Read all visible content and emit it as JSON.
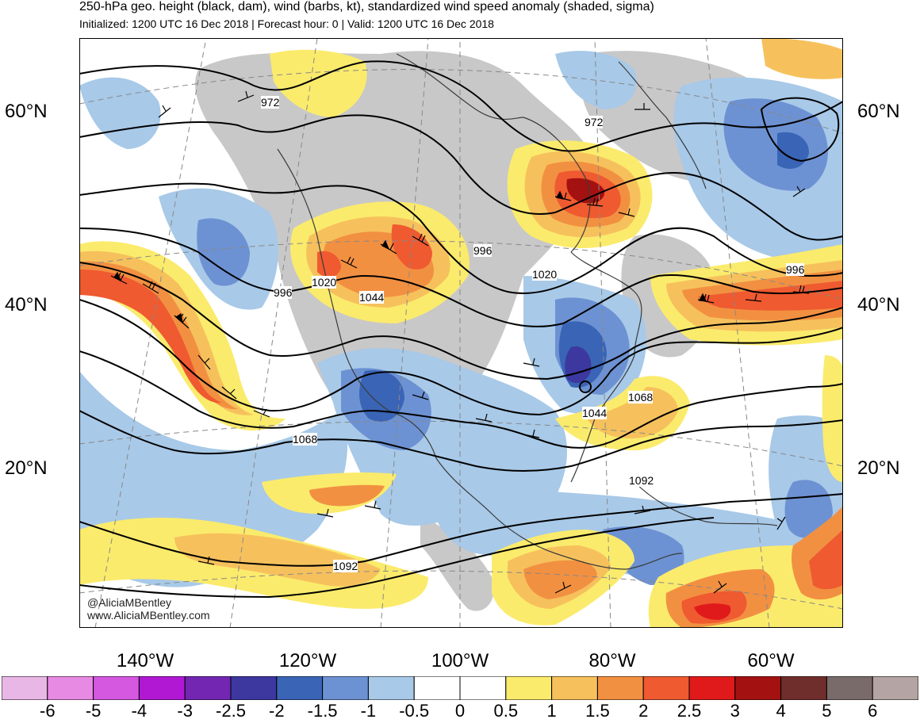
{
  "header": {
    "title": "250-hPa geo. height (black, dam), wind (barbs, kt), standardized wind speed anomaly (shaded, sigma)",
    "subtitle": "Initialized: 1200 UTC 16 Dec 2018 | Forecast hour: 0 | Valid: 1200 UTC 16 Dec 2018"
  },
  "map": {
    "lat_labels": [
      "60°N",
      "40°N",
      "20°N"
    ],
    "lon_labels": [
      "140°W",
      "120°W",
      "100°W",
      "80°W",
      "60°W"
    ],
    "contour_labels": [
      "972",
      "972",
      "996",
      "996",
      "996",
      "1020",
      "1020",
      "1044",
      "1044",
      "1068",
      "1068",
      "1092",
      "1092"
    ],
    "credit_handle": "@AliciaMBentley",
    "credit_url": "www.AliciaMBentley.com"
  },
  "colorbar": {
    "ticks": [
      "-6",
      "-5",
      "-4",
      "-3",
      "-2.5",
      "-2",
      "-1.5",
      "-1",
      "-0.5",
      "0",
      "0.5",
      "1",
      "1.5",
      "2",
      "2.5",
      "3",
      "4",
      "5",
      "6"
    ],
    "colors": [
      "#e9b7e6",
      "#e78ae3",
      "#d558e0",
      "#b018d4",
      "#7226b2",
      "#3c38a0",
      "#3a64b5",
      "#6d92d3",
      "#a8c9e8",
      "#ffffff",
      "#ffffff",
      "#fbeb6c",
      "#f6c15c",
      "#f29041",
      "#ef5a30",
      "#e01a1a",
      "#a41111",
      "#6f2e2b",
      "#7a6b6b",
      "#b5a4a4"
    ]
  }
}
